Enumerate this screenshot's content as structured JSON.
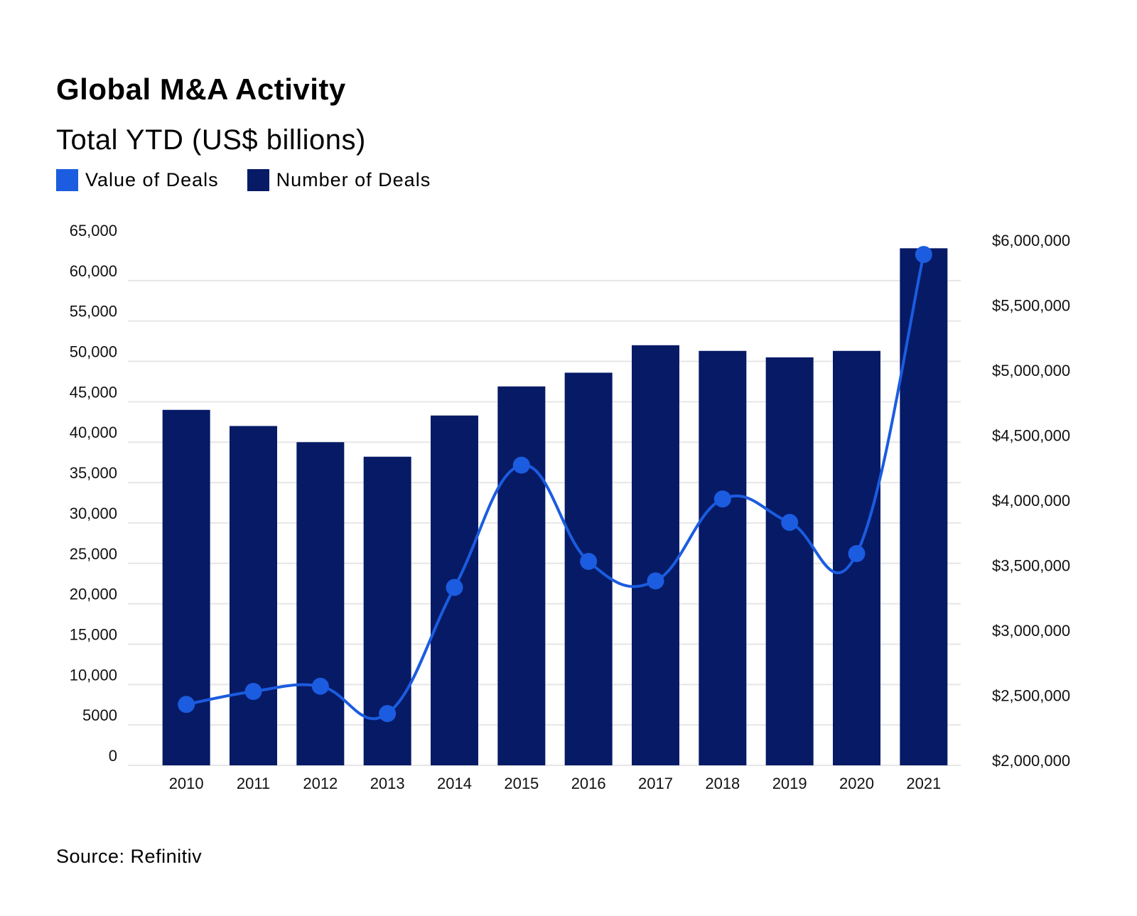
{
  "title": "Global M&A Activity",
  "subtitle": "Total YTD (US$ billions)",
  "legend": {
    "value_label": "Value of Deals",
    "number_label": "Number of Deals"
  },
  "source": "Source: Refinitiv",
  "colors": {
    "bar": "#061a66",
    "line": "#1b5ce0",
    "grid": "#e6e6e6"
  },
  "chart_data": {
    "type": "bar",
    "title": "Global M&A Activity",
    "subtitle": "Total YTD (US$ billions)",
    "categories": [
      "2010",
      "2011",
      "2012",
      "2013",
      "2014",
      "2015",
      "2016",
      "2017",
      "2018",
      "2019",
      "2020",
      "2021"
    ],
    "series": [
      {
        "name": "Number of Deals",
        "type": "bar",
        "axis": "left",
        "values": [
          44000,
          42000,
          40000,
          38200,
          43300,
          46900,
          48600,
          52000,
          51300,
          50500,
          51300,
          64000
        ]
      },
      {
        "name": "Value of Deals",
        "type": "line",
        "axis": "right",
        "values": [
          2430000,
          2530000,
          2570000,
          2360000,
          3330000,
          4270000,
          3530000,
          3380000,
          4010000,
          3830000,
          3590000,
          5890000
        ]
      }
    ],
    "left_axis": {
      "ylim": [
        0,
        65000
      ],
      "ticks": [
        0,
        5000,
        10000,
        15000,
        20000,
        25000,
        30000,
        35000,
        40000,
        45000,
        50000,
        55000,
        60000,
        65000
      ],
      "tick_labels": [
        "0",
        "5000",
        "10,000",
        "15,000",
        "20,000",
        "25,000",
        "30,000",
        "35,000",
        "40,000",
        "45,000",
        "50,000",
        "55,000",
        "60,000",
        "65,000"
      ]
    },
    "right_axis": {
      "ylim": [
        2000000,
        6000000
      ],
      "ticks": [
        2000000,
        2500000,
        3000000,
        3500000,
        4000000,
        4500000,
        5000000,
        5500000,
        6000000
      ],
      "tick_labels": [
        "$2,000,000",
        "$2,500,000",
        "$3,000,000",
        "$3,500,000",
        "$4,000,000",
        "$4,500,000",
        "$5,000,000",
        "$5,500,000",
        "$6,000,000"
      ]
    },
    "grid": true,
    "legend_position": "top-left"
  }
}
